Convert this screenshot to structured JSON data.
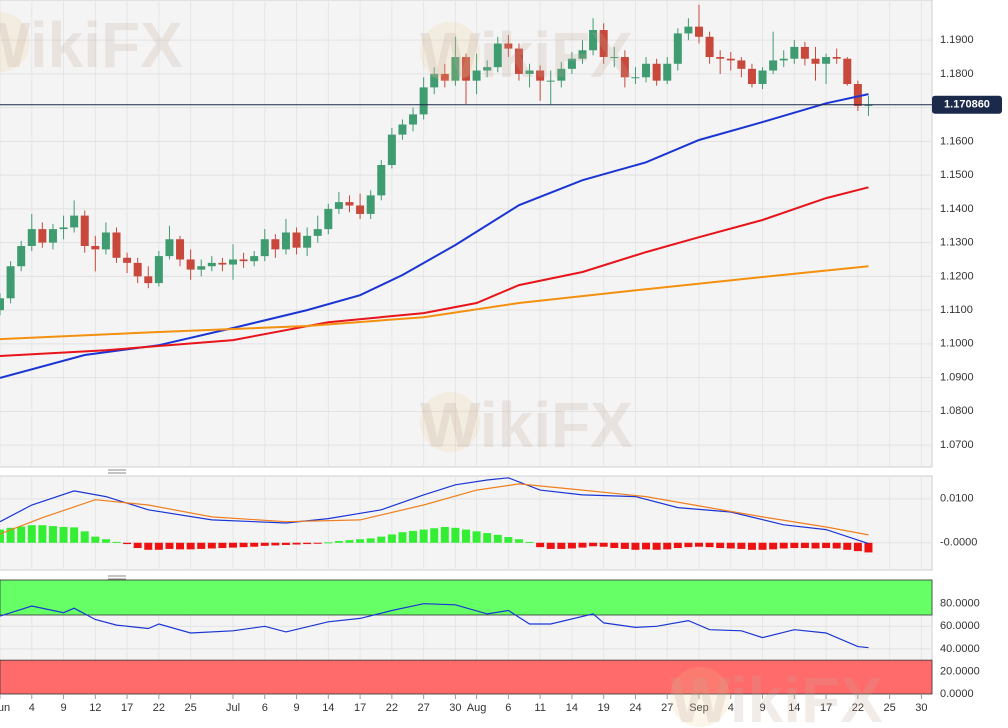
{
  "watermark": "WikiFX",
  "chart_data": [
    {
      "type": "candlestick",
      "ylim": [
        1.0635,
        1.2019
      ],
      "yticks": [
        {
          "value": 1.19,
          "label": "1.1900"
        },
        {
          "value": 1.18,
          "label": "1.1800"
        },
        {
          "value": 1.17,
          "label": "1.1700"
        },
        {
          "value": 1.16,
          "label": "1.1600"
        },
        {
          "value": 1.15,
          "label": "1.1500"
        },
        {
          "value": 1.14,
          "label": "1.1400"
        },
        {
          "value": 1.13,
          "label": "1.1300"
        },
        {
          "value": 1.12,
          "label": "1.1200"
        },
        {
          "value": 1.11,
          "label": "1.1100"
        },
        {
          "value": 1.1,
          "label": "1.1000"
        },
        {
          "value": 1.09,
          "label": "1.0900"
        },
        {
          "value": 1.08,
          "label": "1.0800"
        },
        {
          "value": 1.07,
          "label": "1.0700"
        }
      ],
      "up_color": "#3f9b70",
      "down_color": "#c8483c",
      "x": [
        0,
        1,
        2,
        3,
        4,
        5,
        6,
        7,
        8,
        9,
        10,
        11,
        12,
        13,
        14,
        15,
        16,
        17,
        18,
        19,
        20,
        21,
        22,
        23,
        24,
        25,
        26,
        27,
        28,
        29,
        30,
        31,
        32,
        33,
        34,
        35,
        36,
        37,
        38,
        39,
        40,
        41,
        42,
        43,
        44,
        45,
        46,
        47,
        48,
        49,
        50,
        51,
        52,
        53,
        54,
        55,
        56,
        57,
        58,
        59,
        60,
        61,
        62,
        63,
        64,
        65,
        66,
        67,
        68,
        69,
        70,
        71,
        72,
        73,
        74,
        75,
        76,
        77,
        78,
        79,
        80,
        81,
        82
      ],
      "open": [
        1.11,
        1.1135,
        1.123,
        1.129,
        1.134,
        1.13,
        1.134,
        1.1345,
        1.138,
        1.129,
        1.128,
        1.133,
        1.1255,
        1.124,
        1.12,
        1.118,
        1.126,
        1.131,
        1.125,
        1.122,
        1.123,
        1.124,
        1.1235,
        1.125,
        1.1245,
        1.126,
        1.131,
        1.128,
        1.133,
        1.1285,
        1.132,
        1.134,
        1.14,
        1.142,
        1.141,
        1.1385,
        1.144,
        1.153,
        1.162,
        1.165,
        1.168,
        1.176,
        1.18,
        1.178,
        1.185,
        1.178,
        1.181,
        1.182,
        1.189,
        1.1875,
        1.18,
        1.181,
        1.178,
        1.178,
        1.1815,
        1.1845,
        1.187,
        1.193,
        1.185,
        1.185,
        1.179,
        1.179,
        1.183,
        1.178,
        1.183,
        1.192,
        1.194,
        1.191,
        1.185,
        1.1845,
        1.184,
        1.1815,
        1.177,
        1.181,
        1.184,
        1.1845,
        1.188,
        1.1845,
        1.183,
        1.185,
        1.1845,
        1.177,
        1.1705
      ],
      "high": [
        1.115,
        1.1245,
        1.1305,
        1.1385,
        1.136,
        1.1355,
        1.138,
        1.1425,
        1.1395,
        1.132,
        1.136,
        1.1345,
        1.127,
        1.1255,
        1.123,
        1.1275,
        1.135,
        1.132,
        1.128,
        1.125,
        1.126,
        1.1255,
        1.1295,
        1.127,
        1.1275,
        1.134,
        1.1325,
        1.137,
        1.1345,
        1.1345,
        1.138,
        1.1415,
        1.145,
        1.144,
        1.1445,
        1.1455,
        1.1545,
        1.164,
        1.1665,
        1.17,
        1.179,
        1.182,
        1.183,
        1.191,
        1.186,
        1.186,
        1.184,
        1.191,
        1.1915,
        1.189,
        1.183,
        1.1825,
        1.181,
        1.1835,
        1.1865,
        1.19,
        1.1965,
        1.195,
        1.188,
        1.187,
        1.182,
        1.185,
        1.1845,
        1.185,
        1.1935,
        1.1965,
        1.2005,
        1.1925,
        1.187,
        1.1865,
        1.185,
        1.183,
        1.182,
        1.1925,
        1.187,
        1.19,
        1.1895,
        1.188,
        1.186,
        1.1875,
        1.185,
        1.178,
        1.1735
      ],
      "low": [
        1.1085,
        1.112,
        1.1215,
        1.1275,
        1.1285,
        1.128,
        1.131,
        1.133,
        1.127,
        1.1215,
        1.1265,
        1.124,
        1.121,
        1.118,
        1.1165,
        1.117,
        1.125,
        1.123,
        1.119,
        1.12,
        1.1215,
        1.1215,
        1.119,
        1.1225,
        1.123,
        1.1245,
        1.1255,
        1.1265,
        1.1265,
        1.126,
        1.13,
        1.1325,
        1.1385,
        1.139,
        1.137,
        1.137,
        1.1425,
        1.152,
        1.1605,
        1.163,
        1.1665,
        1.174,
        1.176,
        1.1765,
        1.171,
        1.174,
        1.179,
        1.1805,
        1.185,
        1.178,
        1.176,
        1.172,
        1.171,
        1.176,
        1.18,
        1.183,
        1.1855,
        1.183,
        1.182,
        1.176,
        1.177,
        1.1775,
        1.1765,
        1.177,
        1.181,
        1.19,
        1.189,
        1.183,
        1.18,
        1.181,
        1.179,
        1.176,
        1.1755,
        1.18,
        1.182,
        1.183,
        1.1825,
        1.178,
        1.177,
        1.183,
        1.1765,
        1.169,
        1.1675
      ],
      "close": [
        1.1135,
        1.123,
        1.129,
        1.134,
        1.13,
        1.134,
        1.1345,
        1.138,
        1.129,
        1.128,
        1.133,
        1.1255,
        1.124,
        1.12,
        1.118,
        1.126,
        1.131,
        1.125,
        1.122,
        1.123,
        1.124,
        1.1235,
        1.125,
        1.1245,
        1.126,
        1.131,
        1.128,
        1.133,
        1.1285,
        1.132,
        1.134,
        1.14,
        1.142,
        1.141,
        1.1385,
        1.144,
        1.153,
        1.162,
        1.165,
        1.168,
        1.176,
        1.18,
        1.178,
        1.185,
        1.178,
        1.181,
        1.182,
        1.189,
        1.1875,
        1.18,
        1.181,
        1.178,
        1.178,
        1.1815,
        1.1845,
        1.187,
        1.193,
        1.185,
        1.185,
        1.179,
        1.179,
        1.183,
        1.178,
        1.183,
        1.192,
        1.194,
        1.191,
        1.185,
        1.1845,
        1.184,
        1.1815,
        1.177,
        1.181,
        1.184,
        1.1845,
        1.188,
        1.1845,
        1.183,
        1.185,
        1.1845,
        1.177,
        1.1705,
        1.1709
      ],
      "lines": [
        {
          "color": "#1b35d4",
          "x": [
            0,
            8,
            15,
            22,
            29,
            34,
            38,
            43,
            49,
            55,
            61,
            66,
            72,
            78,
            82
          ],
          "values": [
            1.0899,
            1.0967,
            1.0996,
            1.1047,
            1.11,
            1.1144,
            1.1204,
            1.1293,
            1.1411,
            1.1485,
            1.1538,
            1.1604,
            1.1657,
            1.1713,
            1.174
          ]
        },
        {
          "color": "#e8141a",
          "x": [
            0,
            10,
            22,
            31,
            40,
            45,
            49,
            55,
            61,
            66,
            72,
            78,
            82
          ],
          "values": [
            1.0964,
            1.0981,
            1.1011,
            1.1064,
            1.1091,
            1.1121,
            1.1174,
            1.1213,
            1.1272,
            1.1316,
            1.1367,
            1.1432,
            1.1464
          ]
        },
        {
          "color": "#f5900f",
          "x": [
            0,
            15,
            29,
            40,
            49,
            61,
            72,
            82
          ],
          "values": [
            1.1014,
            1.1035,
            1.1053,
            1.1079,
            1.1121,
            1.1162,
            1.1198,
            1.123
          ]
        }
      ],
      "last_price": {
        "value": 1.17086,
        "label": "1.170860"
      }
    },
    {
      "type": "macd",
      "ylim": [
        -0.0062,
        0.0152
      ],
      "yticks": [
        {
          "value": 0.01,
          "label": "0.0100"
        },
        {
          "value": 0,
          "label": "-0.0000"
        }
      ],
      "series": [
        {
          "color": "#1b35d4",
          "x": [
            0,
            3,
            7,
            10,
            14,
            20,
            27,
            31,
            36,
            40,
            43,
            46,
            48,
            51,
            55,
            60,
            64,
            69,
            74,
            78,
            82
          ],
          "values": [
            0.0048,
            0.0086,
            0.0118,
            0.0105,
            0.0075,
            0.0052,
            0.0045,
            0.0055,
            0.0075,
            0.0109,
            0.0132,
            0.0143,
            0.0148,
            0.012,
            0.0109,
            0.0105,
            0.008,
            0.007,
            0.0041,
            0.003,
            -0.0002
          ]
        },
        {
          "color": "#f07f1e",
          "x": [
            0,
            4,
            9,
            14,
            20,
            27,
            34,
            40,
            45,
            49,
            55,
            61,
            66,
            72,
            78,
            82
          ],
          "values": [
            0.002,
            0.0057,
            0.0098,
            0.0086,
            0.0059,
            0.0048,
            0.0052,
            0.0086,
            0.012,
            0.0134,
            0.012,
            0.0105,
            0.0084,
            0.0059,
            0.0036,
            0.0018
          ]
        }
      ],
      "histogram": {
        "up_color": "#33ee33",
        "down_color": "#ee1111",
        "values": [
          0.003,
          0.0034,
          0.0037,
          0.004,
          0.004,
          0.0038,
          0.0036,
          0.0035,
          0.0026,
          0.0014,
          0.0008,
          0.0002,
          -0.0003,
          -0.0012,
          -0.0016,
          -0.0016,
          -0.0014,
          -0.0015,
          -0.0015,
          -0.0014,
          -0.0013,
          -0.0012,
          -0.0011,
          -0.001,
          -0.0009,
          -0.0007,
          -0.0006,
          -0.0005,
          -0.0004,
          -0.0003,
          -0.0001,
          0.0001,
          0.0004,
          0.0006,
          0.0008,
          0.001,
          0.0014,
          0.0019,
          0.0024,
          0.0027,
          0.003,
          0.0033,
          0.0036,
          0.0034,
          0.003,
          0.0026,
          0.0022,
          0.0018,
          0.0013,
          0.0008,
          0.0002,
          -0.001,
          -0.0014,
          -0.0014,
          -0.0013,
          -0.0011,
          -0.0008,
          -0.0009,
          -0.0012,
          -0.0014,
          -0.0016,
          -0.0015,
          -0.0016,
          -0.0015,
          -0.0012,
          -0.001,
          -0.0009,
          -0.001,
          -0.0012,
          -0.0013,
          -0.0014,
          -0.0016,
          -0.0016,
          -0.0015,
          -0.0013,
          -0.0012,
          -0.0012,
          -0.0013,
          -0.0012,
          -0.0013,
          -0.0016,
          -0.0019,
          -0.0022
        ]
      }
    },
    {
      "type": "rsi",
      "ylim": [
        0,
        101
      ],
      "yticks": [
        {
          "value": 80,
          "label": "80.0000"
        },
        {
          "value": 60,
          "label": "60.0000"
        },
        {
          "value": 40,
          "label": "40.0000"
        },
        {
          "value": 20,
          "label": "20.0000"
        },
        {
          "value": 0,
          "label": "0.0000"
        }
      ],
      "overbought": 70,
      "oversold": 30,
      "overbought_color": "#66ff66",
      "oversold_color": "#ff6b6b",
      "series": [
        {
          "color": "#1b35d4",
          "x": [
            0,
            3,
            6,
            7,
            9,
            11,
            14,
            15,
            18,
            22,
            25,
            27,
            31,
            34,
            37,
            40,
            43,
            46,
            48,
            50,
            52,
            56,
            57,
            60,
            62,
            65,
            67,
            70,
            72,
            75,
            78,
            81,
            82
          ],
          "values": [
            69,
            78,
            72,
            76,
            66,
            61,
            58,
            62,
            54,
            56,
            60,
            55,
            64,
            67,
            74,
            80,
            79,
            71,
            74,
            62,
            62,
            71,
            63,
            59,
            60,
            65,
            57,
            56,
            50,
            57,
            54,
            42,
            41
          ]
        }
      ],
      "xlim": [
        0,
        88
      ],
      "xticks": [
        {
          "value": 0,
          "label": "un"
        },
        {
          "value": 3,
          "label": "4"
        },
        {
          "value": 6,
          "label": "9"
        },
        {
          "value": 9,
          "label": "12"
        },
        {
          "value": 12,
          "label": "17"
        },
        {
          "value": 15,
          "label": "22"
        },
        {
          "value": 18,
          "label": "25"
        },
        {
          "value": 22,
          "label": "Jul"
        },
        {
          "value": 25,
          "label": "6"
        },
        {
          "value": 28,
          "label": "9"
        },
        {
          "value": 31,
          "label": "14"
        },
        {
          "value": 34,
          "label": "17"
        },
        {
          "value": 37,
          "label": "22"
        },
        {
          "value": 40,
          "label": "27"
        },
        {
          "value": 43,
          "label": "30"
        },
        {
          "value": 45,
          "label": "Aug"
        },
        {
          "value": 48,
          "label": "6"
        },
        {
          "value": 51,
          "label": "11"
        },
        {
          "value": 54,
          "label": "14"
        },
        {
          "value": 57,
          "label": "19"
        },
        {
          "value": 60,
          "label": "24"
        },
        {
          "value": 63,
          "label": "27"
        },
        {
          "value": 66,
          "label": "Sep"
        },
        {
          "value": 69,
          "label": "4"
        },
        {
          "value": 72,
          "label": "9"
        },
        {
          "value": 75,
          "label": "14"
        },
        {
          "value": 78,
          "label": "17"
        },
        {
          "value": 81,
          "label": "22"
        },
        {
          "value": 84,
          "label": "25"
        },
        {
          "value": 87,
          "label": "30"
        }
      ]
    }
  ]
}
